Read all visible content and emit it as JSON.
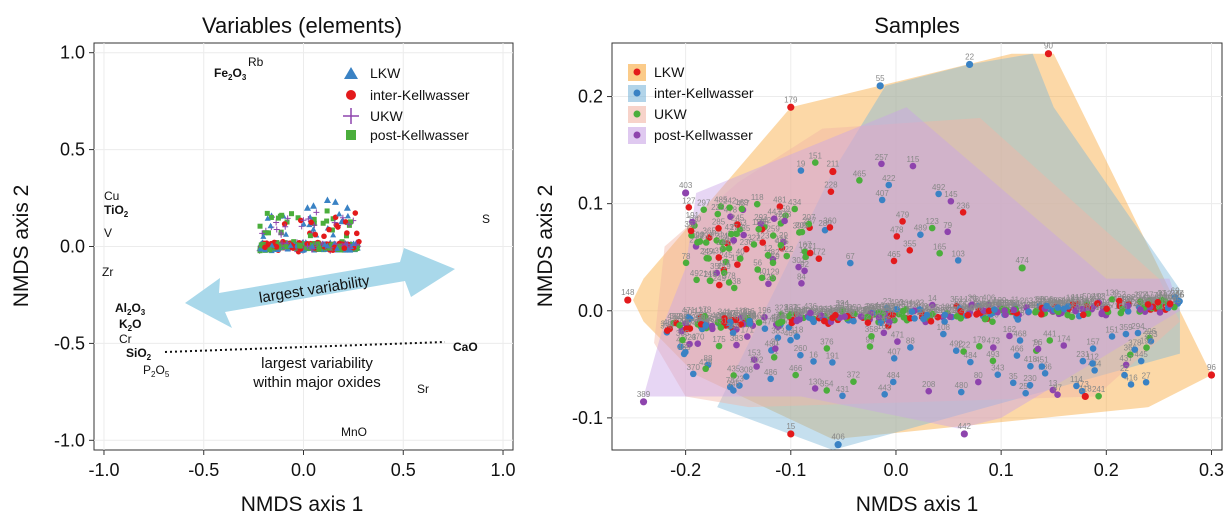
{
  "left_panel": {
    "title": "Variables (elements)",
    "xlabel": "NMDS axis 1",
    "ylabel": "NMDS axis 2",
    "x_ticks": [
      "-1.0",
      "-0.5",
      "0.0",
      "0.5",
      "1.0"
    ],
    "y_ticks": [
      "1.0",
      "0.5",
      "0.0",
      "-0.5",
      "-1.0"
    ],
    "legend": [
      "LKW",
      "inter-Kellwasser",
      "UKW",
      "post-Kellwasser"
    ],
    "arrow_label": "largest variability",
    "line_label_1": "largest variability",
    "line_label_2": "within major oxides",
    "variables": {
      "fe2o3": "Fe",
      "fe2o3_sub1": "2",
      "fe2o3_mid": "O",
      "fe2o3_sub2": "3",
      "rb": "Rb",
      "cu": "Cu",
      "tio2": "TiO",
      "tio2_sub": "2",
      "v": "V",
      "zr": "Zr",
      "s": "S",
      "al2o3": "Al",
      "al2o3_sub1": "2",
      "al2o3_mid": "O",
      "al2o3_sub2": "3",
      "k2o": "K",
      "k2o_sub": "2",
      "k2o_end": "O",
      "cr": "Cr",
      "sio2": "SiO",
      "sio2_sub": "2",
      "p2o5": "P",
      "p2o5_sub1": "2",
      "p2o5_mid": "O",
      "p2o5_sub2": "5",
      "cao": "CaO",
      "sr": "Sr",
      "mno": "MnO"
    }
  },
  "right_panel": {
    "title": "Samples",
    "xlabel": "NMDS axis 1",
    "ylabel": "NMDS axis 2",
    "x_ticks": [
      "-0.2",
      "-0.1",
      "0.0",
      "0.1",
      "0.2",
      "0.3"
    ],
    "y_ticks": [
      "0.2",
      "0.1",
      "0.0",
      "-0.1"
    ],
    "legend": [
      "LKW",
      "inter-Kellwasser",
      "UKW",
      "post-Kellwasser"
    ]
  },
  "colors": {
    "LKW": "#e31a1c",
    "inter": "#3a82c4",
    "UKW": "#4bae3c",
    "post": "#8e44ad",
    "LKW_hull": "#f8a93b",
    "inter_hull": "#7fb7da",
    "UKW_hull": "#f2b5a6",
    "post_hull": "#c9a5e6",
    "arrow": "#a9d8ea"
  },
  "chart_data": [
    {
      "type": "scatter",
      "title": "Variables (elements)",
      "xlabel": "NMDS axis 1",
      "ylabel": "NMDS axis 2",
      "xlim": [
        -1.05,
        1.05
      ],
      "ylim": [
        -1.05,
        1.05
      ],
      "variable_positions": [
        {
          "label": "Fe2O3",
          "x": -0.4,
          "y": 0.93
        },
        {
          "label": "Rb",
          "x": -0.23,
          "y": 0.99
        },
        {
          "label": "Cu",
          "x": -0.96,
          "y": 0.27
        },
        {
          "label": "TiO2",
          "x": -0.93,
          "y": 0.19
        },
        {
          "label": "V",
          "x": -0.97,
          "y": 0.08
        },
        {
          "label": "Zr",
          "x": -0.96,
          "y": -0.12
        },
        {
          "label": "S",
          "x": 0.94,
          "y": 0.15
        },
        {
          "label": "Al2O3",
          "x": -0.89,
          "y": -0.3
        },
        {
          "label": "K2O",
          "x": -0.87,
          "y": -0.38
        },
        {
          "label": "Cr",
          "x": -0.92,
          "y": -0.46
        },
        {
          "label": "SiO2",
          "x": -0.83,
          "y": -0.54
        },
        {
          "label": "P2O5",
          "x": -0.77,
          "y": -0.63
        },
        {
          "label": "CaO",
          "x": 0.83,
          "y": -0.51
        },
        {
          "label": "Sr",
          "x": 0.62,
          "y": -0.73
        },
        {
          "label": "MnO",
          "x": 0.27,
          "y": -0.96
        }
      ],
      "sample_cloud": {
        "x_range": [
          -0.25,
          0.3
        ],
        "y_range": [
          -0.12,
          0.24
        ]
      }
    },
    {
      "type": "scatter",
      "title": "Samples",
      "xlabel": "NMDS axis 1",
      "ylabel": "NMDS axis 2",
      "xlim": [
        -0.27,
        0.31
      ],
      "ylim": [
        -0.13,
        0.25
      ],
      "series": [
        {
          "name": "LKW",
          "hull": [
            [
              -0.25,
              0.01
            ],
            [
              -0.24,
              -0.01
            ],
            [
              -0.19,
              -0.06
            ],
            [
              -0.06,
              -0.12
            ],
            [
              0.24,
              -0.09
            ],
            [
              0.3,
              -0.06
            ],
            [
              0.26,
              0.02
            ],
            [
              0.15,
              0.24
            ],
            [
              0.11,
              0.24
            ],
            [
              -0.1,
              0.19
            ],
            [
              -0.24,
              0.03
            ]
          ]
        },
        {
          "name": "inter-Kellwasser",
          "hull": [
            [
              -0.17,
              -0.09
            ],
            [
              -0.06,
              -0.13
            ],
            [
              0.27,
              -0.04
            ],
            [
              0.27,
              0.02
            ],
            [
              0.15,
              0.19
            ],
            [
              0.13,
              0.24
            ],
            [
              0.07,
              0.23
            ],
            [
              -0.01,
              0.21
            ],
            [
              -0.06,
              0.13
            ],
            [
              -0.15,
              -0.05
            ]
          ]
        },
        {
          "name": "UKW",
          "hull": [
            [
              -0.23,
              -0.03
            ],
            [
              -0.2,
              -0.08
            ],
            [
              -0.14,
              -0.09
            ],
            [
              0.19,
              -0.08
            ],
            [
              0.27,
              -0.01
            ],
            [
              0.25,
              0.03
            ],
            [
              0.08,
              0.18
            ],
            [
              -0.07,
              0.17
            ],
            [
              -0.15,
              0.12
            ],
            [
              -0.22,
              0.06
            ]
          ]
        },
        {
          "name": "post-Kellwasser",
          "hull": [
            [
              -0.24,
              -0.08
            ],
            [
              -0.09,
              -0.08
            ],
            [
              0.06,
              -0.11
            ],
            [
              0.1,
              -0.1
            ],
            [
              0.27,
              0.0
            ],
            [
              0.26,
              0.03
            ],
            [
              0.2,
              0.03
            ],
            [
              0.01,
              0.19
            ],
            [
              -0.19,
              0.11
            ],
            [
              -0.2,
              0.04
            ],
            [
              -0.22,
              -0.01
            ]
          ]
        }
      ],
      "labeled_points": [
        {
          "series": "LKW",
          "label": "148",
          "x": -0.255,
          "y": 0.01
        },
        {
          "series": "LKW",
          "label": "179",
          "x": -0.1,
          "y": 0.19
        },
        {
          "series": "LKW",
          "label": "211",
          "x": -0.06,
          "y": 0.13
        },
        {
          "series": "LKW",
          "label": "90",
          "x": 0.145,
          "y": 0.24
        },
        {
          "series": "LKW",
          "label": "96",
          "x": 0.3,
          "y": -0.06
        },
        {
          "series": "LKW",
          "label": "15",
          "x": -0.1,
          "y": -0.115
        },
        {
          "series": "LKW",
          "label": "118",
          "x": 0.18,
          "y": -0.08
        },
        {
          "series": "inter-Kellwasser",
          "label": "55",
          "x": -0.015,
          "y": 0.21
        },
        {
          "series": "inter-Kellwasser",
          "label": "22",
          "x": 0.07,
          "y": 0.23
        },
        {
          "series": "inter-Kellwasser",
          "label": "406",
          "x": -0.055,
          "y": -0.125
        },
        {
          "series": "UKW",
          "label": "474",
          "x": 0.12,
          "y": 0.04
        },
        {
          "series": "post-Kellwasser",
          "label": "403",
          "x": -0.2,
          "y": 0.11
        },
        {
          "series": "post-Kellwasser",
          "label": "442",
          "x": 0.065,
          "y": -0.115
        },
        {
          "series": "post-Kellwasser",
          "label": "389",
          "x": -0.24,
          "y": -0.085
        }
      ],
      "point_cloud": {
        "x_range": [
          -0.25,
          0.3
        ],
        "y_range": [
          -0.125,
          0.24
        ],
        "main_band_y": 0.0
      }
    }
  ]
}
